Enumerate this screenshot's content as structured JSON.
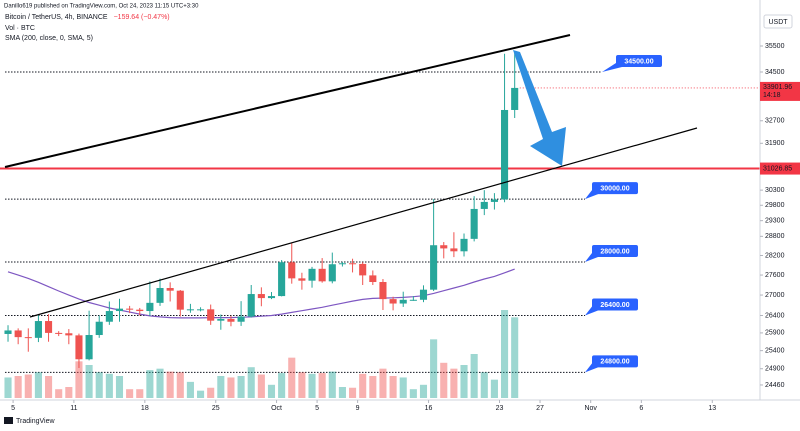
{
  "header": {
    "published": "Danillo619 published on TradingView.com, Oct 24, 2023 11:15 UTC+3:30",
    "title": "Bitcoin / TetherUS, 4h, BINANCE",
    "change": "−159.64 (−0.47%)",
    "currency": "USDT"
  },
  "footer": {
    "brand": "TradingView"
  },
  "chart_data": {
    "type": "candlestick",
    "x": [
      "2023-09-04",
      "2023-09-05",
      "2023-09-06",
      "2023-09-07",
      "2023-09-08",
      "2023-09-09",
      "2023-09-10",
      "2023-09-11",
      "2023-09-12",
      "2023-09-13",
      "2023-09-14",
      "2023-09-15",
      "2023-09-16",
      "2023-09-17",
      "2023-09-18",
      "2023-09-19",
      "2023-09-20",
      "2023-09-21",
      "2023-09-22",
      "2023-09-23",
      "2023-09-24",
      "2023-09-25",
      "2023-09-26",
      "2023-09-27",
      "2023-09-28",
      "2023-09-29",
      "2023-09-30",
      "2023-10-01",
      "2023-10-02",
      "2023-10-03",
      "2023-10-04",
      "2023-10-05",
      "2023-10-06",
      "2023-10-07",
      "2023-10-08",
      "2023-10-09",
      "2023-10-10",
      "2023-10-11",
      "2023-10-12",
      "2023-10-13",
      "2023-10-14",
      "2023-10-15",
      "2023-10-16",
      "2023-10-17",
      "2023-10-18",
      "2023-10-19",
      "2023-10-20",
      "2023-10-21",
      "2023-10-22",
      "2023-10-23",
      "2023-10-24"
    ],
    "open": [
      25870,
      25970,
      25780,
      25760,
      26240,
      25900,
      25890,
      25830,
      25160,
      25840,
      26220,
      26530,
      26600,
      26570,
      26530,
      26770,
      27210,
      27130,
      26570,
      26580,
      26580,
      26250,
      26300,
      26220,
      26370,
      27030,
      26910,
      26970,
      27990,
      27500,
      27430,
      27790,
      27410,
      27930,
      27960,
      27940,
      27590,
      27390,
      26880,
      26750,
      26860,
      26860,
      27160,
      28520,
      28420,
      28330,
      28720,
      29680,
      29910,
      29990,
      33090
    ],
    "high": [
      26120,
      26030,
      26030,
      26430,
      26440,
      25950,
      26010,
      25880,
      26540,
      26400,
      26810,
      26890,
      26680,
      26620,
      27410,
      27490,
      27380,
      27150,
      26740,
      26640,
      26720,
      26430,
      26390,
      26820,
      27300,
      27230,
      27090,
      28060,
      28580,
      27670,
      27850,
      28120,
      28290,
      28000,
      28100,
      27990,
      27740,
      27480,
      26950,
      27100,
      26970,
      27290,
      30000,
      28620,
      28930,
      28890,
      30100,
      30300,
      30200,
      35200,
      35280
    ],
    "low": [
      25650,
      25580,
      25370,
      25640,
      25650,
      25810,
      25580,
      24920,
      25130,
      25760,
      26130,
      26220,
      26470,
      26400,
      26390,
      26680,
      26810,
      26370,
      26480,
      26520,
      26130,
      25990,
      26090,
      26100,
      26340,
      26670,
      26880,
      26960,
      27340,
      27160,
      27220,
      27370,
      27350,
      27860,
      27680,
      27300,
      27300,
      26560,
      26550,
      26650,
      26830,
      26790,
      27120,
      28110,
      28150,
      28170,
      28640,
      29480,
      29660,
      29900,
      32800
    ],
    "close": [
      25970,
      25780,
      25760,
      26240,
      25900,
      25890,
      25830,
      25160,
      25840,
      26220,
      26530,
      26600,
      26570,
      26530,
      26770,
      27210,
      27130,
      26570,
      26580,
      26580,
      26250,
      26300,
      26220,
      26370,
      27030,
      26910,
      26970,
      27990,
      27500,
      27430,
      27790,
      27410,
      27930,
      27960,
      27940,
      27590,
      27390,
      26880,
      26750,
      26860,
      26860,
      27160,
      28520,
      28420,
      28330,
      28720,
      29680,
      29910,
      29990,
      33090,
      33901.96
    ],
    "volume_name": "Vol · BTC",
    "volume": [
      28,
      30,
      32,
      35,
      30,
      12,
      15,
      50,
      45,
      35,
      33,
      30,
      12,
      12,
      38,
      40,
      36,
      35,
      22,
      10,
      14,
      30,
      28,
      30,
      42,
      32,
      18,
      34,
      55,
      35,
      33,
      34,
      36,
      15,
      14,
      33,
      30,
      40,
      30,
      28,
      12,
      18,
      80,
      48,
      40,
      45,
      60,
      35,
      25,
      120,
      110
    ],
    "up_color": "#26a69a",
    "down_color": "#ef5350",
    "sma": {
      "name": "SMA (200, close, 0, SMA, 5)",
      "color": "#7e57c2",
      "values": [
        27700,
        27600,
        27500,
        27380,
        27250,
        27120,
        27000,
        26880,
        26780,
        26700,
        26620,
        26560,
        26500,
        26440,
        26390,
        26360,
        26340,
        26330,
        26330,
        26330,
        26340,
        26340,
        26340,
        26350,
        26360,
        26380,
        26400,
        26440,
        26490,
        26540,
        26590,
        26640,
        26700,
        26760,
        26820,
        26870,
        26900,
        26910,
        26920,
        26930,
        26950,
        26980,
        27050,
        27130,
        27210,
        27290,
        27390,
        27480,
        27560,
        27670,
        27780
      ]
    },
    "log_scale": true,
    "grid": false,
    "ylim": [
      24059,
      37341
    ],
    "yticks": [
      35500,
      34500,
      32700,
      31900,
      30300,
      29800,
      29300,
      28800,
      28200,
      27600,
      27000,
      26400,
      25900,
      25400,
      24900,
      24460
    ],
    "xlim": [
      "2023-09-03T17:00",
      "2023-11-17T17:00"
    ],
    "xticks": [
      {
        "value": "2023-09-05",
        "label": "5"
      },
      {
        "value": "2023-09-11",
        "label": "11"
      },
      {
        "value": "2023-09-18",
        "label": "18"
      },
      {
        "value": "2023-09-25",
        "label": "25"
      },
      {
        "value": "2023-10-01",
        "label": "Oct"
      },
      {
        "value": "2023-10-05",
        "label": "5"
      },
      {
        "value": "2023-10-09",
        "label": "9"
      },
      {
        "value": "2023-10-16",
        "label": "16"
      },
      {
        "value": "2023-10-23",
        "label": "23"
      },
      {
        "value": "2023-10-27",
        "label": "27"
      },
      {
        "value": "2023-11-01",
        "label": "Nov"
      },
      {
        "value": "2023-11-06",
        "label": "6"
      },
      {
        "value": "2023-11-13",
        "label": "13"
      }
    ],
    "levels": [
      {
        "value": 34500,
        "label": "34500.00"
      },
      {
        "value": 30000,
        "label": "30000.00"
      },
      {
        "value": 28000,
        "label": "28000.00"
      },
      {
        "value": 26400,
        "label": "26400.00"
      },
      {
        "value": 24800,
        "label": "24800.00"
      }
    ],
    "support_line": {
      "value": 31026.85,
      "label": "31026.85",
      "color": "#f23645"
    },
    "last_price": 33901.96,
    "countdown": "14:18"
  }
}
